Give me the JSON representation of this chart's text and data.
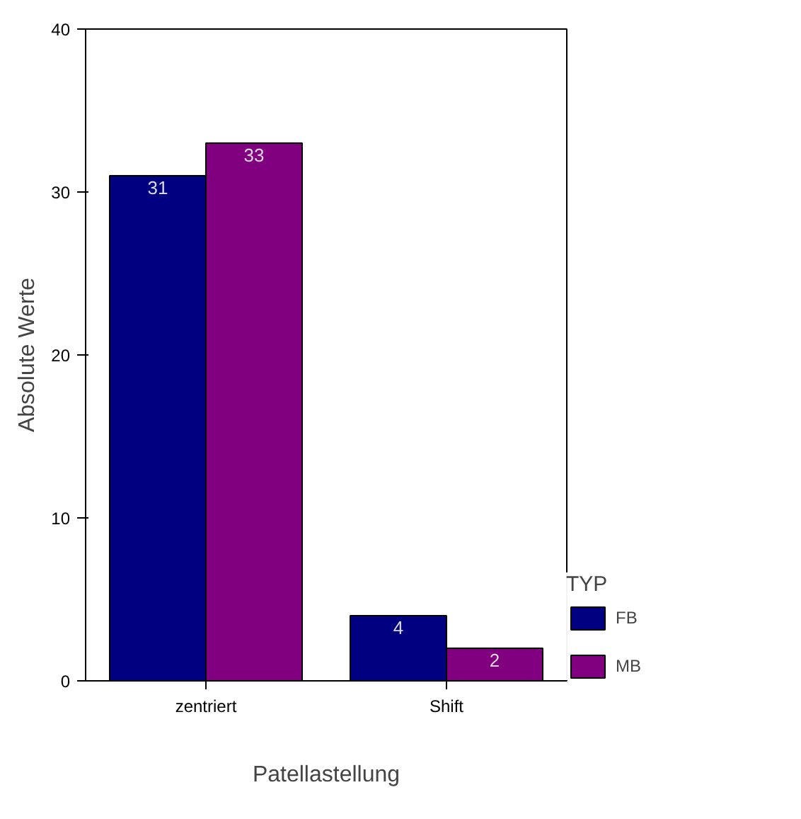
{
  "chart_data": {
    "type": "bar",
    "xlabel": "Patellastellung",
    "ylabel": "Absolute Werte",
    "legend_title": "TYP",
    "categories": [
      "zentriert",
      "Shift"
    ],
    "series": [
      {
        "name": "FB",
        "color": "#000080",
        "values": [
          31,
          4
        ]
      },
      {
        "name": "MB",
        "color": "#800080",
        "values": [
          33,
          2
        ]
      }
    ],
    "ylim": [
      0,
      40
    ],
    "yticks": [
      0,
      10,
      20,
      30,
      40
    ],
    "data_labels": true,
    "legend": "right",
    "grid": false
  }
}
